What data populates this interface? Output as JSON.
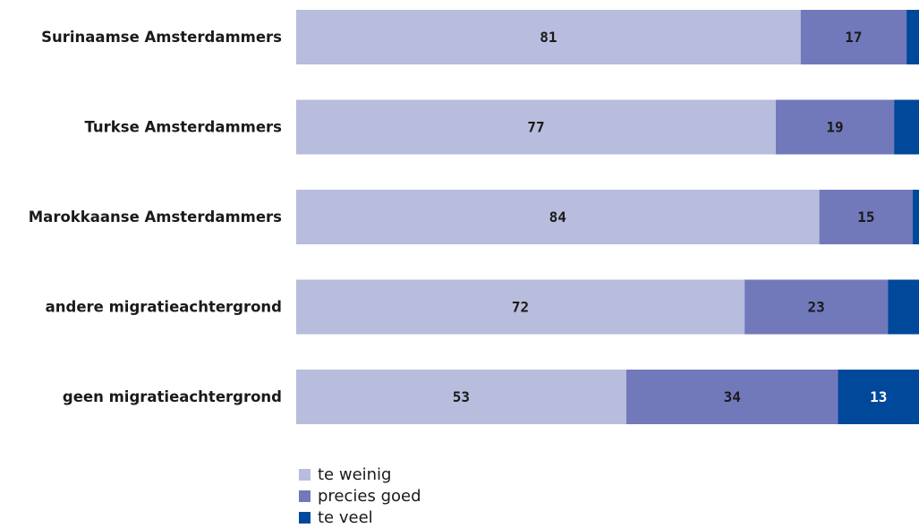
{
  "chart_data": {
    "type": "bar",
    "orientation": "horizontal",
    "stacked": true,
    "categories": [
      "Surinaamse Amsterdammers",
      "Turkse Amsterdammers",
      "Marokkaanse Amsterdammers",
      "andere migratieachtergrond",
      "geen migratieachtergrond"
    ],
    "series": [
      {
        "name": "te weinig",
        "color": "#b8bcdd",
        "label_color": "#1a1a1a",
        "values": [
          81,
          77,
          84,
          72,
          53
        ]
      },
      {
        "name": "precies goed",
        "color": "#7179bb",
        "label_color": "#1a1a1a",
        "values": [
          17,
          19,
          15,
          23,
          34
        ]
      },
      {
        "name": "te veel",
        "color": "#00489a",
        "label_color": "#ffffff",
        "values": [
          2,
          4,
          1,
          5,
          13
        ]
      }
    ],
    "show_value_labels_min": 10,
    "xlim": [
      0,
      100
    ],
    "legend_position": "bottom-left"
  }
}
